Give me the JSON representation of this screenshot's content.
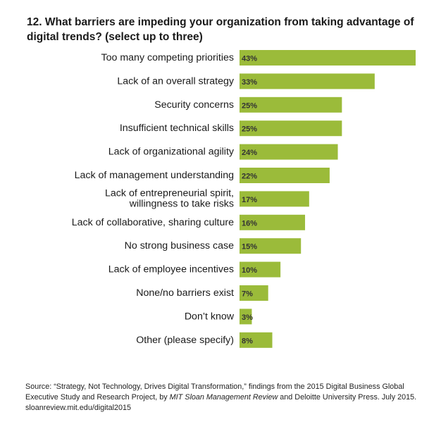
{
  "chart_data": {
    "type": "bar",
    "orientation": "horizontal",
    "title": "12. What barriers are impeding your organization from taking advantage of digital trends? (select up to three)",
    "categories": [
      "Too many competing priorities",
      [
        "Lack of an overall strategy"
      ],
      "Security concerns",
      "Insufficient technical skills",
      "Lack of organizational agility",
      "Lack of management understanding",
      "Lack of entrepreneurial spirit, willingness to take risks",
      "Lack of collaborative, sharing culture",
      "No strong business case",
      "Lack of employee incentives",
      "None/no barriers exist",
      "Don’t know",
      "Other (please specify)"
    ],
    "values": [
      43,
      33,
      25,
      25,
      24,
      22,
      17,
      16,
      15,
      10,
      7,
      3,
      8
    ],
    "value_labels": [
      "43%",
      "33%",
      "25%",
      "25%",
      "24%",
      "22%",
      "17%",
      "16%",
      "15%",
      "10%",
      "7%",
      "3%",
      "8%"
    ],
    "unit": "%",
    "xlim": [
      0,
      43
    ],
    "grid": false,
    "legend": "none",
    "bar_color": "#9bbb3a"
  },
  "source": {
    "prefix": "Source: “Strategy, Not Technology, Drives Digital Transformation,” findings from the 2015 Digital Business Global Executive Study and Research Project, by ",
    "publication": "MIT Sloan Management Review",
    "suffix": " and Deloitte University Press. July 2015. sloanreview.mit.edu/digital2015"
  }
}
